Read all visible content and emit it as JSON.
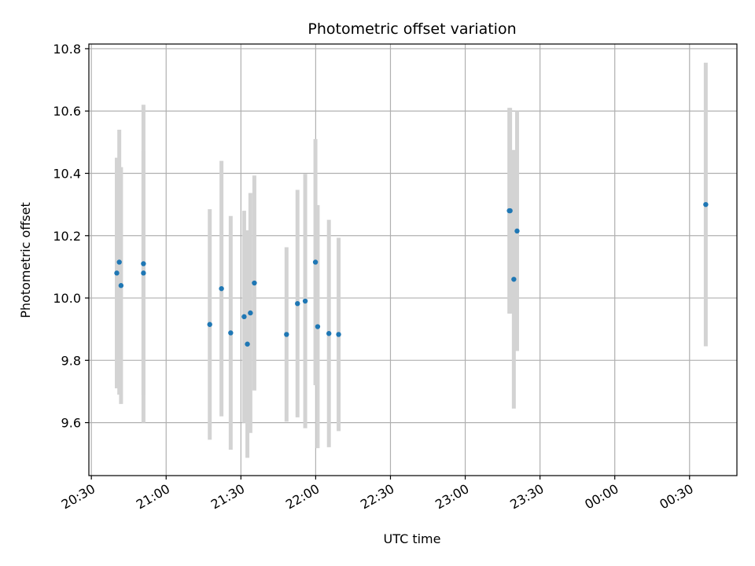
{
  "chart_data": {
    "type": "scatter",
    "title": "Photometric offset variation",
    "xlabel": "UTC time",
    "ylabel": "Photometric offset",
    "x_unit": "minutes since 20:30 UTC",
    "xlim": [
      -1,
      259
    ],
    "ylim": [
      9.43,
      10.815
    ],
    "x_ticks": [
      {
        "label": "20:30",
        "value": 0
      },
      {
        "label": "21:00",
        "value": 30
      },
      {
        "label": "21:30",
        "value": 60
      },
      {
        "label": "22:00",
        "value": 90
      },
      {
        "label": "22:30",
        "value": 120
      },
      {
        "label": "23:00",
        "value": 150
      },
      {
        "label": "23:30",
        "value": 180
      },
      {
        "label": "00:00",
        "value": 210
      },
      {
        "label": "00:30",
        "value": 240
      }
    ],
    "y_ticks": [
      9.6,
      9.8,
      10.0,
      10.2,
      10.4,
      10.6,
      10.8
    ],
    "y_tick_labels": [
      "9.6",
      "9.8",
      "10.0",
      "10.2",
      "10.4",
      "10.6",
      "10.8"
    ],
    "grid": true,
    "point_color": "#1f77b4",
    "errorbar_color": "#d3d3d3",
    "points": [
      {
        "x": 10.2,
        "y": 10.08,
        "yerr": 0.37
      },
      {
        "x": 11.2,
        "y": 10.115,
        "yerr": 0.425
      },
      {
        "x": 11.9,
        "y": 10.04,
        "yerr": 0.38
      },
      {
        "x": 20.9,
        "y": 10.11,
        "yerr": 0.51
      },
      {
        "x": 20.9,
        "y": 10.08,
        "yerr": 0.39
      },
      {
        "x": 47.5,
        "y": 9.915,
        "yerr": 0.37
      },
      {
        "x": 52.2,
        "y": 10.03,
        "yerr": 0.41
      },
      {
        "x": 55.9,
        "y": 9.888,
        "yerr": 0.375
      },
      {
        "x": 61.3,
        "y": 9.94,
        "yerr": 0.34
      },
      {
        "x": 62.6,
        "y": 9.852,
        "yerr": 0.365
      },
      {
        "x": 63.8,
        "y": 9.952,
        "yerr": 0.385
      },
      {
        "x": 65.4,
        "y": 10.048,
        "yerr": 0.345
      },
      {
        "x": 78.3,
        "y": 9.883,
        "yerr": 0.28
      },
      {
        "x": 82.7,
        "y": 9.982,
        "yerr": 0.365
      },
      {
        "x": 85.8,
        "y": 9.99,
        "yerr": 0.408
      },
      {
        "x": 89.9,
        "y": 10.115,
        "yerr": 0.395
      },
      {
        "x": 90.8,
        "y": 9.908,
        "yerr": 0.39
      },
      {
        "x": 95.3,
        "y": 9.886,
        "yerr": 0.365
      },
      {
        "x": 99.2,
        "y": 9.883,
        "yerr": 0.31
      },
      {
        "x": 167.7,
        "y": 10.28,
        "yerr": 0.33
      },
      {
        "x": 168.0,
        "y": 10.28,
        "yerr": 0.33
      },
      {
        "x": 169.5,
        "y": 10.06,
        "yerr": 0.415
      },
      {
        "x": 170.8,
        "y": 10.215,
        "yerr": 0.385
      },
      {
        "x": 246.5,
        "y": 10.3,
        "yerr": 0.455
      }
    ]
  }
}
